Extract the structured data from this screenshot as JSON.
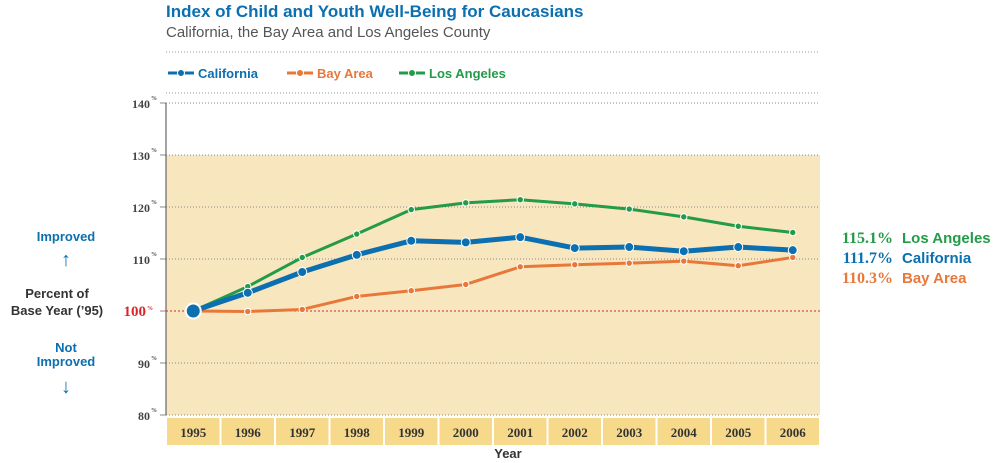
{
  "title": "Index of Child and Youth Well-Being for Caucasians",
  "subtitle": "California, the Bay Area and Los Angeles County",
  "left_labels": {
    "improved": "Improved",
    "percent_line1": "Percent of",
    "percent_line2": "Base Year (’95)",
    "not_improved_line1": "Not",
    "not_improved_line2": "Improved",
    "up_arrow": "↑",
    "down_arrow": "↓"
  },
  "colors": {
    "california": "#0b6fb0",
    "bay_area": "#e8783a",
    "los_angeles": "#239b48",
    "baseline": "#d9262b",
    "band": "#f8e6bf",
    "xaxis_band": "#f7d98c"
  },
  "chart_data": {
    "type": "line",
    "title": "Index of Child and Youth Well-Being for Caucasians",
    "subtitle": "California, the Bay Area and Los Angeles County",
    "xlabel": "Year",
    "ylabel": "Percent of Base Year (’95)",
    "x": [
      "1995",
      "1996",
      "1997",
      "1998",
      "1999",
      "2000",
      "2001",
      "2002",
      "2003",
      "2004",
      "2005",
      "2006"
    ],
    "ylim": [
      80,
      140
    ],
    "yticks": [
      80,
      90,
      100,
      110,
      120,
      130,
      140
    ],
    "ytick_labels": [
      "80%",
      "90%",
      "100%",
      "110%",
      "120%",
      "130%",
      "140%"
    ],
    "shaded_band": [
      80,
      130
    ],
    "baseline": 100,
    "legend_position": "top-left",
    "series": [
      {
        "name": "California",
        "color": "#0b6fb0",
        "values": [
          100,
          103.5,
          107.5,
          110.8,
          113.5,
          113.2,
          114.2,
          112.1,
          112.3,
          111.5,
          112.3,
          111.7
        ]
      },
      {
        "name": "Bay Area",
        "color": "#e8783a",
        "values": [
          100,
          99.9,
          100.3,
          102.8,
          103.9,
          105.1,
          108.5,
          108.9,
          109.2,
          109.6,
          108.7,
          110.3
        ]
      },
      {
        "name": "Los Angeles",
        "color": "#239b48",
        "values": [
          100,
          104.7,
          110.3,
          114.8,
          119.5,
          120.8,
          121.4,
          120.6,
          119.6,
          118.1,
          116.3,
          115.1
        ]
      }
    ],
    "end_labels": [
      {
        "value": "115.1%",
        "name": "Los Angeles",
        "color": "#239b48"
      },
      {
        "value": "111.7%",
        "name": "California",
        "color": "#0b6fb0"
      },
      {
        "value": "110.3%",
        "name": "Bay Area",
        "color": "#e8783a"
      }
    ]
  }
}
